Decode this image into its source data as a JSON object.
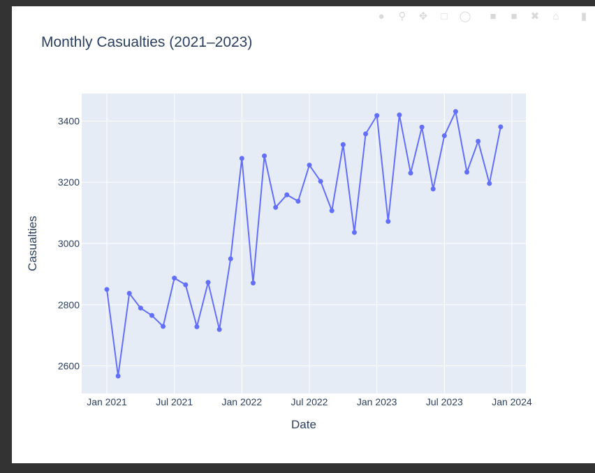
{
  "chart_data": {
    "type": "line",
    "title": "Monthly Casualties (2021–2023)",
    "xlabel": "Date",
    "ylabel": "Casualties",
    "x_start": "2021-01",
    "x": [
      "2021-01",
      "2021-02",
      "2021-03",
      "2021-04",
      "2021-05",
      "2021-06",
      "2021-07",
      "2021-08",
      "2021-09",
      "2021-10",
      "2021-11",
      "2021-12",
      "2022-01",
      "2022-02",
      "2022-03",
      "2022-04",
      "2022-05",
      "2022-06",
      "2022-07",
      "2022-08",
      "2022-09",
      "2022-10",
      "2022-11",
      "2022-12",
      "2023-01",
      "2023-02",
      "2023-03",
      "2023-04",
      "2023-05",
      "2023-06",
      "2023-07",
      "2023-08",
      "2023-09",
      "2023-10",
      "2023-11",
      "2023-12"
    ],
    "values": [
      2850,
      2567,
      2837,
      2789,
      2765,
      2729,
      2887,
      2865,
      2728,
      2873,
      2719,
      2950,
      3278,
      2871,
      3286,
      3118,
      3159,
      3138,
      3256,
      3203,
      3107,
      3323,
      3036,
      3358,
      3418,
      3072,
      3420,
      3230,
      3380,
      3178,
      3352,
      3431,
      3233,
      3334,
      3196,
      3381
    ],
    "x_ticks": [
      "Jan 2021",
      "Jul 2021",
      "Jan 2022",
      "Jul 2022",
      "Jan 2023",
      "Jul 2023",
      "Jan 2024"
    ],
    "y_ticks": [
      2600,
      2800,
      3000,
      3200,
      3400
    ],
    "ylim": [
      2510,
      3490
    ],
    "line_color": "#636efa",
    "plot_bg": "#e5ecf6",
    "grid": true
  },
  "modebar": {
    "buttons": [
      "camera-icon",
      "zoom-icon",
      "pan-icon",
      "box-select-icon",
      "lasso-icon",
      "zoom-in-icon",
      "zoom-out-icon",
      "autoscale-icon",
      "reset-axes-icon",
      "plotly-logo-icon"
    ]
  }
}
